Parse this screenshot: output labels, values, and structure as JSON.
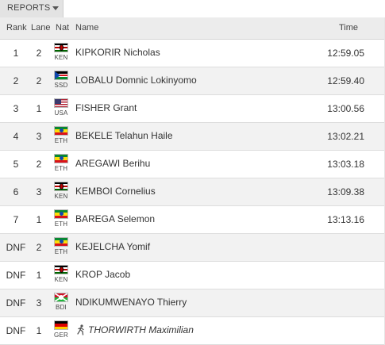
{
  "toolbar": {
    "reports_label": "REPORTS",
    "reports_icon": "chevron-down-icon"
  },
  "table": {
    "headers": {
      "rank": "Rank",
      "lane": "Lane",
      "nat": "Nat",
      "name": "Name",
      "time": "Time"
    },
    "rows": [
      {
        "rank": "1",
        "lane": "2",
        "nat": "KEN",
        "name": "KIPKORIR Nicholas",
        "time": "12:59.05"
      },
      {
        "rank": "2",
        "lane": "2",
        "nat": "SSD",
        "name": "LOBALU Domnic Lokinyomo",
        "time": "12:59.40"
      },
      {
        "rank": "3",
        "lane": "1",
        "nat": "USA",
        "name": "FISHER Grant",
        "time": "13:00.56"
      },
      {
        "rank": "4",
        "lane": "3",
        "nat": "ETH",
        "name": "BEKELE Telahun Haile",
        "time": "13:02.21"
      },
      {
        "rank": "5",
        "lane": "2",
        "nat": "ETH",
        "name": "AREGAWI Berihu",
        "time": "13:03.18"
      },
      {
        "rank": "6",
        "lane": "3",
        "nat": "KEN",
        "name": "KEMBOI Cornelius",
        "time": "13:09.38"
      },
      {
        "rank": "7",
        "lane": "1",
        "nat": "ETH",
        "name": "BAREGA Selemon",
        "time": "13:13.16"
      },
      {
        "rank": "DNF",
        "lane": "2",
        "nat": "ETH",
        "name": "KEJELCHA Yomif",
        "time": ""
      },
      {
        "rank": "DNF",
        "lane": "1",
        "nat": "KEN",
        "name": "KROP Jacob",
        "time": ""
      },
      {
        "rank": "DNF",
        "lane": "3",
        "nat": "BDI",
        "name": "NDIKUMWENAYO Thierry",
        "time": ""
      },
      {
        "rank": "DNF",
        "lane": "1",
        "nat": "GER",
        "name": "THORWIRTH Maximilian",
        "time": "",
        "icon": "runner-icon"
      }
    ]
  }
}
